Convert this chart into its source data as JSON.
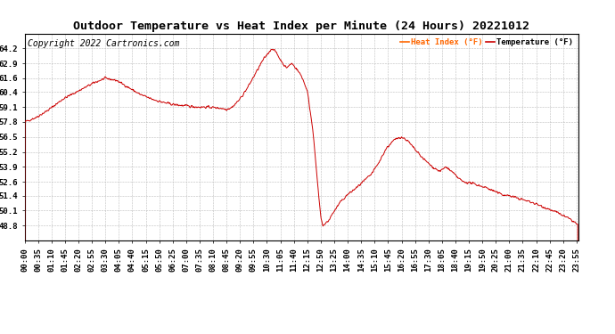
{
  "title": "Outdoor Temperature vs Heat Index per Minute (24 Hours) 20221012",
  "copyright": "Copyright 2022 Cartronics.com",
  "legend_heat": "Heat Index (°F)",
  "legend_temp": "Temperature (°F)",
  "line_color_red": "#cc0000",
  "background_color": "#ffffff",
  "grid_color": "#bbbbbb",
  "title_color": "#000000",
  "copyright_color": "#000000",
  "legend_heat_color": "#ff6600",
  "legend_temp_color": "#000000",
  "yticks": [
    48.8,
    50.1,
    51.4,
    52.6,
    53.9,
    55.2,
    56.5,
    57.8,
    59.1,
    60.4,
    61.6,
    62.9,
    64.2
  ],
  "ylim": [
    47.5,
    65.5
  ],
  "total_minutes": 1440,
  "xtick_interval": 35,
  "title_fontsize": 9.5,
  "axis_fontsize": 6.5,
  "copyright_fontsize": 7
}
